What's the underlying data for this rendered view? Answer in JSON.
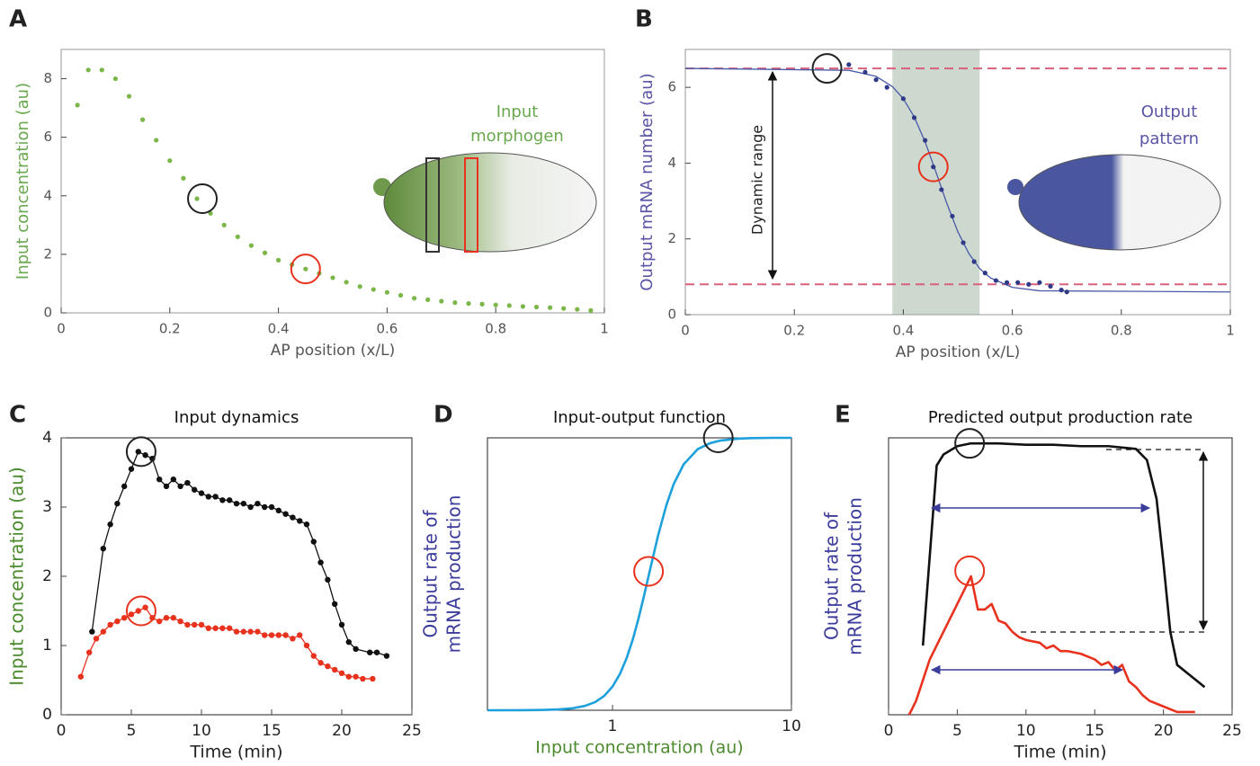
{
  "chart_data": [
    {
      "type": "scatter",
      "label": "A",
      "xlabel": "AP position (x/L)",
      "ylabel": [
        "Input concentration (au)"
      ],
      "ylabel_color": "#6aa84f",
      "annotations": [
        "Input",
        "morphogen"
      ],
      "annotation_color": "#6aa84f",
      "xlim": [
        0,
        1
      ],
      "ylim": [
        0,
        9
      ],
      "xticks": [
        0,
        0.2,
        0.4,
        0.6,
        0.8,
        1
      ],
      "yticks": [
        0,
        2,
        4,
        6,
        8
      ],
      "series": [
        {
          "style": "points",
          "color": "#7ab648",
          "x": [
            0.03,
            0.05,
            0.075,
            0.1,
            0.125,
            0.15,
            0.175,
            0.2,
            0.225,
            0.25,
            0.275,
            0.3,
            0.325,
            0.35,
            0.375,
            0.4,
            0.425,
            0.45,
            0.475,
            0.5,
            0.525,
            0.55,
            0.575,
            0.6,
            0.625,
            0.65,
            0.675,
            0.7,
            0.725,
            0.75,
            0.775,
            0.8,
            0.825,
            0.85,
            0.875,
            0.9,
            0.925,
            0.95,
            0.975
          ],
          "values": [
            7.1,
            8.3,
            8.3,
            8.0,
            7.4,
            6.6,
            5.9,
            5.2,
            4.6,
            3.9,
            3.4,
            3.0,
            2.6,
            2.3,
            2.05,
            1.8,
            1.65,
            1.5,
            1.35,
            1.2,
            1.05,
            0.9,
            0.8,
            0.7,
            0.6,
            0.5,
            0.45,
            0.4,
            0.35,
            0.32,
            0.3,
            0.27,
            0.25,
            0.22,
            0.2,
            0.18,
            0.15,
            0.12,
            0.08
          ]
        }
      ],
      "markers": [
        {
          "x": 0.26,
          "y": 3.9,
          "color": "#222222"
        },
        {
          "x": 0.45,
          "y": 1.5,
          "color": "#e8321e"
        }
      ]
    },
    {
      "type": "scatter",
      "label": "B",
      "xlabel": "AP position (x/L)",
      "ylabel": [
        "Output mRNA number (au)"
      ],
      "ylabel_color": "#5a55a5",
      "annotations": [
        "Output",
        "pattern"
      ],
      "annotation_color": "#5a55a5",
      "arrow_label": "Dynamic range",
      "xlim": [
        0,
        1
      ],
      "ylim": [
        0,
        7
      ],
      "xticks": [
        0,
        0.2,
        0.4,
        0.6,
        0.8,
        1
      ],
      "yticks": [
        0,
        2,
        4,
        6
      ],
      "band": [
        0.38,
        0.54
      ],
      "band_color": "#cdd8cf",
      "hlines": [
        6.5,
        0.8
      ],
      "hline_color": "#d9607a",
      "series": [
        {
          "style": "line",
          "color": "#4a5aa8",
          "x": [
            0,
            0.3,
            0.35,
            0.38,
            0.4,
            0.42,
            0.44,
            0.46,
            0.48,
            0.5,
            0.52,
            0.54,
            0.56,
            0.6,
            0.65,
            1
          ],
          "values": [
            6.5,
            6.45,
            6.29,
            6.02,
            5.7,
            5.22,
            4.56,
            3.76,
            2.93,
            2.19,
            1.62,
            1.22,
            0.97,
            0.72,
            0.63,
            0.6
          ]
        },
        {
          "style": "points",
          "color": "#2e3a87",
          "x": [
            0.3,
            0.33,
            0.35,
            0.37,
            0.4,
            0.42,
            0.44,
            0.455,
            0.47,
            0.49,
            0.51,
            0.53,
            0.55,
            0.57,
            0.59,
            0.61,
            0.63,
            0.65,
            0.67,
            0.69,
            0.7
          ],
          "values": [
            6.6,
            6.4,
            6.2,
            6.0,
            5.7,
            5.2,
            4.6,
            3.9,
            3.3,
            2.6,
            1.9,
            1.4,
            1.1,
            0.9,
            0.85,
            0.85,
            0.8,
            0.85,
            0.75,
            0.65,
            0.6
          ]
        }
      ],
      "markers": [
        {
          "x": 0.26,
          "y": 6.5,
          "color": "#222222"
        },
        {
          "x": 0.455,
          "y": 3.9,
          "color": "#e8321e"
        }
      ]
    },
    {
      "type": "line",
      "label": "C",
      "title": "Input dynamics",
      "xlabel": "Time (min)",
      "ylabel": [
        "Input concentration (au)"
      ],
      "ylabel_color": "#4c8a2e",
      "xlim": [
        0,
        25
      ],
      "ylim": [
        0,
        4
      ],
      "xticks": [
        0,
        5,
        10,
        15,
        20,
        25
      ],
      "yticks": [
        0,
        1,
        2,
        3,
        4
      ],
      "series": [
        {
          "style": "line-points",
          "color": "#111111",
          "x": [
            2.2,
            3,
            3.5,
            4,
            4.5,
            5,
            5.5,
            6,
            6.5,
            7,
            7.5,
            8,
            8.5,
            9,
            9.5,
            10,
            10.5,
            11,
            11.5,
            12,
            12.5,
            13,
            13.5,
            14,
            14.5,
            15,
            15.5,
            16,
            16.5,
            17,
            17.5,
            18,
            18.5,
            19,
            19.5,
            20,
            20.5,
            21,
            22,
            22.5,
            23.2
          ],
          "values": [
            1.2,
            2.4,
            2.75,
            3.05,
            3.3,
            3.55,
            3.8,
            3.75,
            3.7,
            3.4,
            3.3,
            3.4,
            3.3,
            3.35,
            3.25,
            3.2,
            3.15,
            3.15,
            3.1,
            3.1,
            3.05,
            3.05,
            3.0,
            3.05,
            3.0,
            3.0,
            2.95,
            2.9,
            2.85,
            2.8,
            2.75,
            2.5,
            2.2,
            1.95,
            1.6,
            1.3,
            1.05,
            0.95,
            0.9,
            0.9,
            0.85
          ]
        },
        {
          "style": "line-points",
          "color": "#e8321e",
          "x": [
            1.4,
            2,
            2.5,
            3,
            3.5,
            4,
            4.5,
            5,
            5.5,
            6,
            6.5,
            7,
            7.5,
            8,
            8.5,
            9,
            9.5,
            10,
            10.5,
            11,
            11.5,
            12,
            12.5,
            13,
            13.5,
            14,
            14.5,
            15,
            15.5,
            16,
            16.5,
            17,
            17.5,
            18,
            18.5,
            19,
            19.5,
            20,
            20.5,
            21,
            21.5,
            22.2
          ],
          "values": [
            0.55,
            0.9,
            1.1,
            1.2,
            1.3,
            1.35,
            1.4,
            1.45,
            1.5,
            1.55,
            1.4,
            1.35,
            1.4,
            1.4,
            1.35,
            1.3,
            1.3,
            1.3,
            1.25,
            1.25,
            1.25,
            1.25,
            1.2,
            1.2,
            1.2,
            1.2,
            1.15,
            1.15,
            1.15,
            1.15,
            1.1,
            1.15,
            1.0,
            0.85,
            0.75,
            0.7,
            0.65,
            0.6,
            0.55,
            0.55,
            0.52,
            0.52
          ]
        }
      ],
      "markers": [
        {
          "x": 5.7,
          "y": 3.8,
          "color": "#222222"
        },
        {
          "x": 5.7,
          "y": 1.5,
          "color": "#e8321e"
        }
      ]
    },
    {
      "type": "line",
      "label": "D",
      "title": "Input-output function",
      "xlabel": "Input concentration (au)",
      "xlabel_color": "#4c8a2e",
      "ylabel": [
        "Output rate of",
        "mRNA production"
      ],
      "ylabel_color": "#3c3c9c",
      "xlog": true,
      "xlim": [
        0.2,
        10
      ],
      "ylim": [
        0,
        1
      ],
      "xticks": [
        1,
        10
      ],
      "series": [
        {
          "style": "line",
          "color": "#1ea0dc",
          "x": [
            0.2,
            0.3,
            0.4,
            0.5,
            0.6,
            0.7,
            0.8,
            0.9,
            1,
            1.1,
            1.2,
            1.3,
            1.4,
            1.5,
            1.6,
            1.8,
            2,
            2.2,
            2.5,
            3,
            3.5,
            4,
            5,
            6,
            8,
            10
          ],
          "values": [
            0,
            0.0002,
            0.001,
            0.003,
            0.0074,
            0.0158,
            0.03,
            0.053,
            0.087,
            0.133,
            0.192,
            0.261,
            0.339,
            0.42,
            0.5,
            0.643,
            0.753,
            0.831,
            0.903,
            0.959,
            0.98,
            0.99,
            0.997,
            0.999,
            1,
            1
          ]
        }
      ],
      "markers": [
        {
          "x": 3.9,
          "y": 1,
          "color": "#222222"
        },
        {
          "x": 1.59,
          "y": 0.51,
          "color": "#e8321e"
        }
      ]
    },
    {
      "type": "line",
      "label": "E",
      "title": "Predicted output production rate",
      "xlabel": "Time (min)",
      "ylabel": [
        "Output rate of",
        "mRNA production"
      ],
      "ylabel_color": "#3c3c9c",
      "xlim": [
        0,
        25
      ],
      "ylim": [
        0,
        1
      ],
      "xticks": [
        0,
        5,
        10,
        15,
        20,
        25
      ],
      "series": [
        {
          "style": "line",
          "color": "#111111",
          "x": [
            2.5,
            3.5,
            4,
            5,
            6,
            8,
            10,
            12,
            14,
            16,
            18,
            18.8,
            19.5,
            20,
            20.5,
            21,
            22,
            23
          ],
          "values": [
            0.25,
            0.9,
            0.94,
            0.97,
            0.98,
            0.98,
            0.975,
            0.975,
            0.97,
            0.97,
            0.96,
            0.92,
            0.78,
            0.55,
            0.3,
            0.18,
            0.14,
            0.1
          ]
        },
        {
          "style": "line",
          "color": "#e8321e",
          "x": [
            1.5,
            2,
            3,
            4,
            5,
            5.5,
            6,
            6.5,
            7,
            7.5,
            8,
            8.5,
            9,
            9.5,
            10,
            11,
            11.5,
            12,
            12.5,
            13,
            14,
            14.5,
            15,
            15.5,
            16,
            16.5,
            17,
            17.5,
            18,
            18.5,
            19,
            20,
            21,
            22.3
          ],
          "values": [
            0,
            0.05,
            0.2,
            0.3,
            0.4,
            0.45,
            0.5,
            0.38,
            0.38,
            0.4,
            0.34,
            0.33,
            0.3,
            0.28,
            0.27,
            0.26,
            0.24,
            0.25,
            0.23,
            0.23,
            0.22,
            0.21,
            0.2,
            0.18,
            0.19,
            0.16,
            0.18,
            0.12,
            0.1,
            0.07,
            0.05,
            0.03,
            0.01,
            0.01
          ]
        }
      ],
      "markers": [
        {
          "x": 5.9,
          "y": 0.98,
          "color": "#222222"
        },
        {
          "x": 5.9,
          "y": 0.52,
          "color": "#e8321e"
        }
      ]
    }
  ]
}
